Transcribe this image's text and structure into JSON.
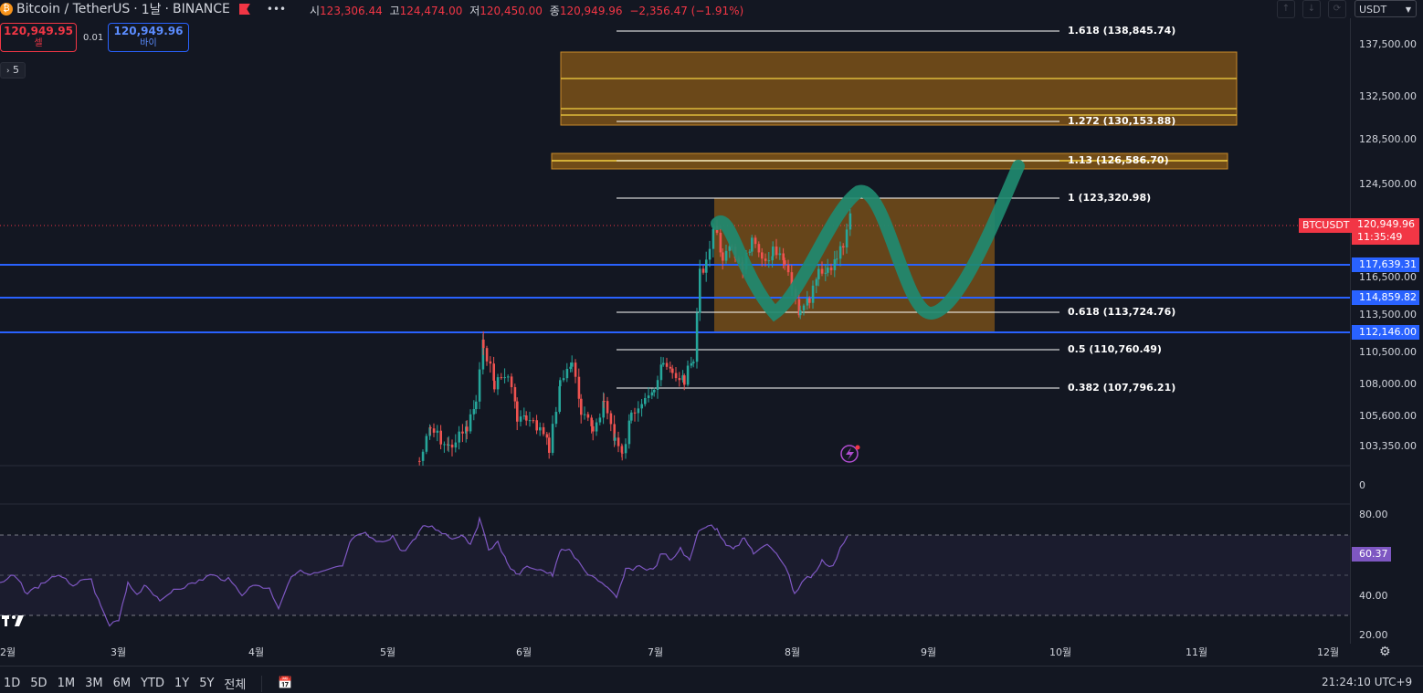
{
  "header": {
    "symbol": "Bitcoin / TetherUS",
    "interval": "1날",
    "exchange": "BINANCE",
    "ohlc": [
      {
        "label": "시",
        "value": "123,306.44"
      },
      {
        "label": "고",
        "value": "124,474.00"
      },
      {
        "label": "저",
        "value": "120,450.00"
      },
      {
        "label": "종",
        "value": "120,949.96"
      }
    ],
    "change": "−2,356.47 (−1.91%)",
    "currency": "USDT"
  },
  "trade": {
    "sell_price": "120,949.95",
    "sell_label": "셀",
    "spread": "0.01",
    "buy_price": "120,949.96",
    "buy_label": "바이"
  },
  "indicator_toggle": "5",
  "price_axis": [
    "137,500.00",
    "132,500.00",
    "128,500.00",
    "124,500.00",
    "116,500.00",
    "113,500.00",
    "110,500.00",
    "108,000.00",
    "105,600.00",
    "103,350.00",
    "0"
  ],
  "rsi_axis": [
    "80.00",
    "40.00",
    "20.00"
  ],
  "fib_levels": [
    {
      "label": "1.618 (138,845.74)"
    },
    {
      "label": "1.272 (130,153.88)"
    },
    {
      "label": "1.13 (126,586.70)"
    },
    {
      "label": "1 (123,320.98)"
    },
    {
      "label": "0.618 (113,724.76)"
    },
    {
      "label": "0.5 (110,760.49)"
    },
    {
      "label": "0.382 (107,796.21)"
    }
  ],
  "price_tags": {
    "symbol": "BTCUSDT",
    "last_price": "120,949.96",
    "countdown": "11:35:49",
    "h1": "117,639.31",
    "h2": "114,859.82",
    "h3": "112,146.00",
    "rsi": "60.37"
  },
  "time_axis": [
    "2월",
    "3월",
    "4월",
    "5월",
    "6월",
    "7월",
    "8월",
    "9월",
    "10월",
    "11월",
    "12월"
  ],
  "bottom_bar": {
    "ranges": [
      "1D",
      "5D",
      "1M",
      "3M",
      "6M",
      "YTD",
      "1Y",
      "5Y",
      "전체"
    ],
    "clock": "21:24:10 UTC+9"
  },
  "colors": {
    "background": "#131722",
    "up": "#26a69a",
    "down": "#ef5350",
    "horizontal_line": "#2962ff",
    "rsi": "#7e57c2",
    "zone_fill": "#8a5a17",
    "path": "#1f8a70"
  }
}
